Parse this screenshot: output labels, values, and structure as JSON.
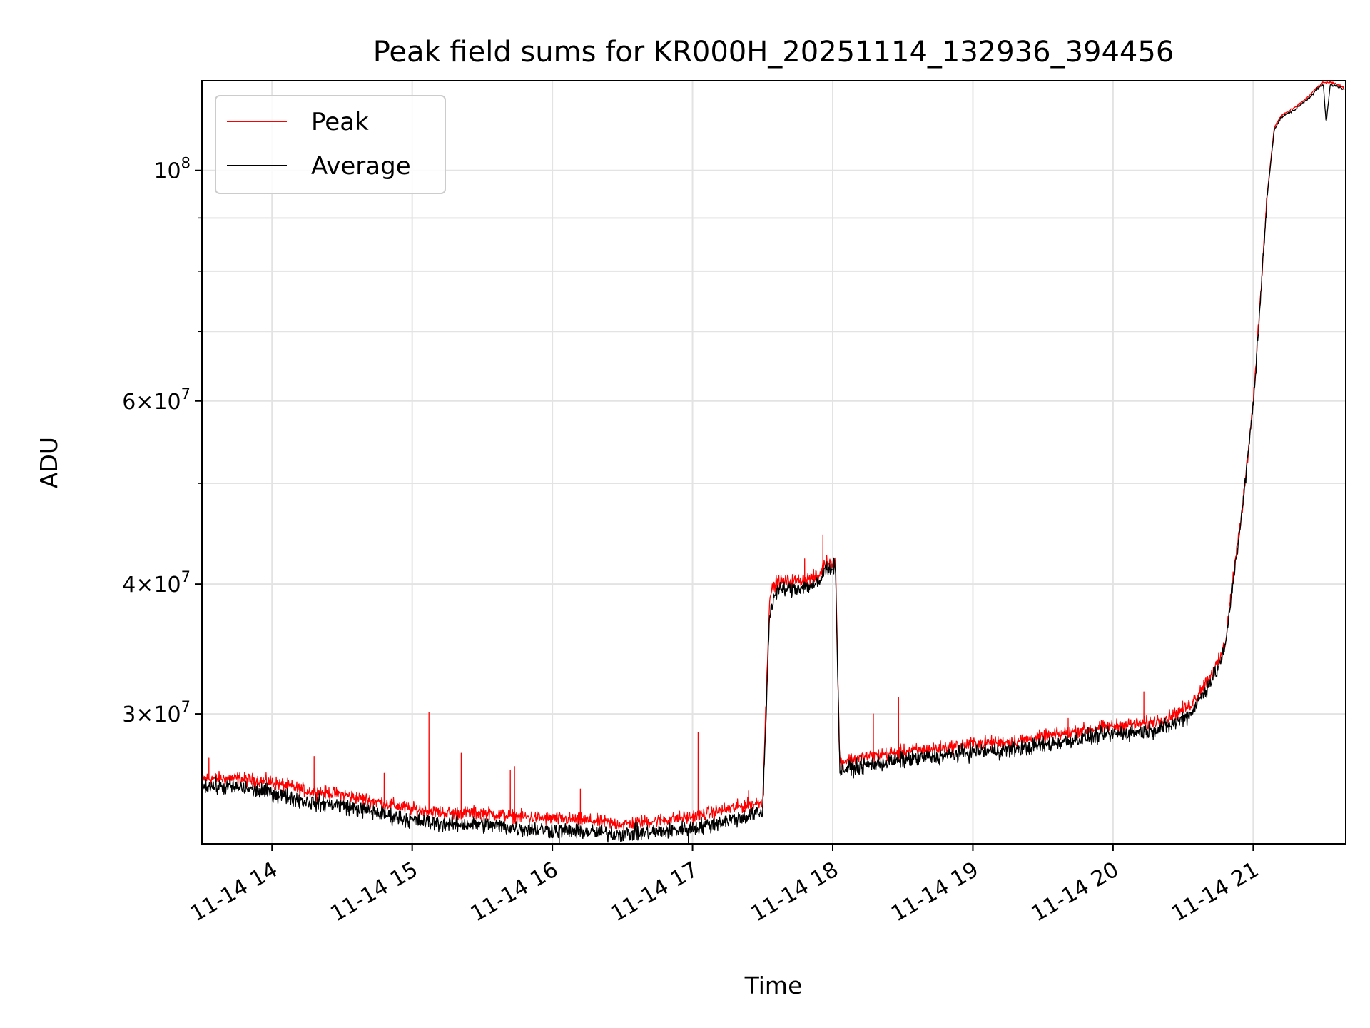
{
  "chart_data": {
    "type": "line",
    "title": "Peak field sums for KR000H_20251114_132936_394456",
    "xlabel": "Time",
    "ylabel": "ADU",
    "yscale": "log",
    "xlim_hours": [
      13.5,
      21.66
    ],
    "ylim": [
      22500000,
      122000000
    ],
    "grid": true,
    "legend_position": "upper-left",
    "x_ticks": [
      {
        "hour": 14,
        "label": "11-14 14"
      },
      {
        "hour": 15,
        "label": "11-14 15"
      },
      {
        "hour": 16,
        "label": "11-14 16"
      },
      {
        "hour": 17,
        "label": "11-14 17"
      },
      {
        "hour": 18,
        "label": "11-14 18"
      },
      {
        "hour": 19,
        "label": "11-14 19"
      },
      {
        "hour": 20,
        "label": "11-14 20"
      },
      {
        "hour": 21,
        "label": "11-14 21"
      }
    ],
    "y_major_ticks": [
      {
        "value": 30000000,
        "mant": "3",
        "exp": "7"
      },
      {
        "value": 40000000,
        "mant": "4",
        "exp": "7"
      },
      {
        "value": 60000000,
        "mant": "6",
        "exp": "7"
      },
      {
        "value": 100000000,
        "mant": "",
        "exp": "8"
      }
    ],
    "y_minor_ticks": [
      50000000,
      70000000,
      80000000,
      90000000
    ],
    "series": [
      {
        "name": "Peak",
        "color": "#ff0000",
        "points": [
          [
            13.5,
            26000000
          ],
          [
            13.75,
            26000000
          ],
          [
            14.0,
            25800000
          ],
          [
            14.25,
            25300000
          ],
          [
            14.5,
            25100000
          ],
          [
            14.75,
            24700000
          ],
          [
            15.0,
            24300000
          ],
          [
            15.25,
            24100000
          ],
          [
            15.5,
            24100000
          ],
          [
            15.75,
            23900000
          ],
          [
            16.0,
            23800000
          ],
          [
            16.25,
            23700000
          ],
          [
            16.5,
            23500000
          ],
          [
            16.75,
            23700000
          ],
          [
            17.0,
            23900000
          ],
          [
            17.25,
            24300000
          ],
          [
            17.5,
            24700000
          ],
          [
            17.55,
            39000000
          ],
          [
            17.6,
            40200000
          ],
          [
            17.75,
            40300000
          ],
          [
            17.9,
            40700000
          ],
          [
            17.95,
            42000000
          ],
          [
            18.02,
            42100000
          ],
          [
            18.05,
            27000000
          ],
          [
            18.25,
            27300000
          ],
          [
            18.5,
            27600000
          ],
          [
            18.75,
            27800000
          ],
          [
            19.0,
            28100000
          ],
          [
            19.25,
            28200000
          ],
          [
            19.5,
            28500000
          ],
          [
            19.75,
            28900000
          ],
          [
            20.0,
            29200000
          ],
          [
            20.25,
            29400000
          ],
          [
            20.4,
            29800000
          ],
          [
            20.55,
            30600000
          ],
          [
            20.65,
            32000000
          ],
          [
            20.75,
            33600000
          ],
          [
            20.8,
            35000000
          ],
          [
            20.85,
            40000000
          ],
          [
            20.92,
            47000000
          ],
          [
            21.0,
            60000000
          ],
          [
            21.05,
            75000000
          ],
          [
            21.1,
            95000000
          ],
          [
            21.15,
            110000000
          ],
          [
            21.2,
            113000000
          ],
          [
            21.25,
            114000000
          ],
          [
            21.3,
            115000000
          ],
          [
            21.35,
            116500000
          ],
          [
            21.4,
            118000000
          ],
          [
            21.45,
            120000000
          ],
          [
            21.5,
            121500000
          ],
          [
            21.55,
            121500000
          ],
          [
            21.6,
            121000000
          ],
          [
            21.65,
            120000000
          ]
        ],
        "spikes": [
          [
            13.55,
            27200000
          ],
          [
            14.3,
            27300000
          ],
          [
            14.8,
            26300000
          ],
          [
            15.12,
            30100000
          ],
          [
            15.35,
            27500000
          ],
          [
            15.7,
            26500000
          ],
          [
            15.73,
            26700000
          ],
          [
            16.2,
            25400000
          ],
          [
            17.04,
            28800000
          ],
          [
            17.4,
            25300000
          ],
          [
            17.8,
            42300000
          ],
          [
            17.93,
            44600000
          ],
          [
            18.29,
            30000000
          ],
          [
            18.47,
            31100000
          ],
          [
            19.68,
            29700000
          ],
          [
            20.22,
            31500000
          ]
        ]
      },
      {
        "name": "Average",
        "color": "#000000",
        "points": [
          [
            13.5,
            25600000
          ],
          [
            13.75,
            25500000
          ],
          [
            14.0,
            25200000
          ],
          [
            14.25,
            24700000
          ],
          [
            14.5,
            24500000
          ],
          [
            14.75,
            24100000
          ],
          [
            15.0,
            23700000
          ],
          [
            15.25,
            23500000
          ],
          [
            15.5,
            23500000
          ],
          [
            15.75,
            23300000
          ],
          [
            16.0,
            23200000
          ],
          [
            16.25,
            23100000
          ],
          [
            16.5,
            23000000
          ],
          [
            16.75,
            23100000
          ],
          [
            17.0,
            23300000
          ],
          [
            17.25,
            23700000
          ],
          [
            17.5,
            24100000
          ],
          [
            17.55,
            37500000
          ],
          [
            17.6,
            39500000
          ],
          [
            17.75,
            39700000
          ],
          [
            17.9,
            40000000
          ],
          [
            17.95,
            41400000
          ],
          [
            18.02,
            41600000
          ],
          [
            18.05,
            26500000
          ],
          [
            18.25,
            26800000
          ],
          [
            18.5,
            27100000
          ],
          [
            18.75,
            27300000
          ],
          [
            19.0,
            27600000
          ],
          [
            19.25,
            27700000
          ],
          [
            19.5,
            28000000
          ],
          [
            19.75,
            28400000
          ],
          [
            20.0,
            28700000
          ],
          [
            20.25,
            28900000
          ],
          [
            20.4,
            29200000
          ],
          [
            20.55,
            30000000
          ],
          [
            20.65,
            31500000
          ],
          [
            20.75,
            33200000
          ],
          [
            20.8,
            34700000
          ],
          [
            20.85,
            39700000
          ],
          [
            20.92,
            46800000
          ],
          [
            21.0,
            59500000
          ],
          [
            21.05,
            74500000
          ],
          [
            21.1,
            94500000
          ],
          [
            21.15,
            109500000
          ],
          [
            21.2,
            112500000
          ],
          [
            21.25,
            113500000
          ],
          [
            21.3,
            114500000
          ],
          [
            21.35,
            116000000
          ],
          [
            21.4,
            117500000
          ],
          [
            21.45,
            119500000
          ],
          [
            21.5,
            121000000
          ],
          [
            21.52,
            111000000
          ],
          [
            21.55,
            121000000
          ],
          [
            21.6,
            120500000
          ],
          [
            21.65,
            119500000
          ]
        ],
        "spikes": [
          [
            16.05,
            22300000
          ],
          [
            16.97,
            22500000
          ]
        ]
      }
    ]
  }
}
